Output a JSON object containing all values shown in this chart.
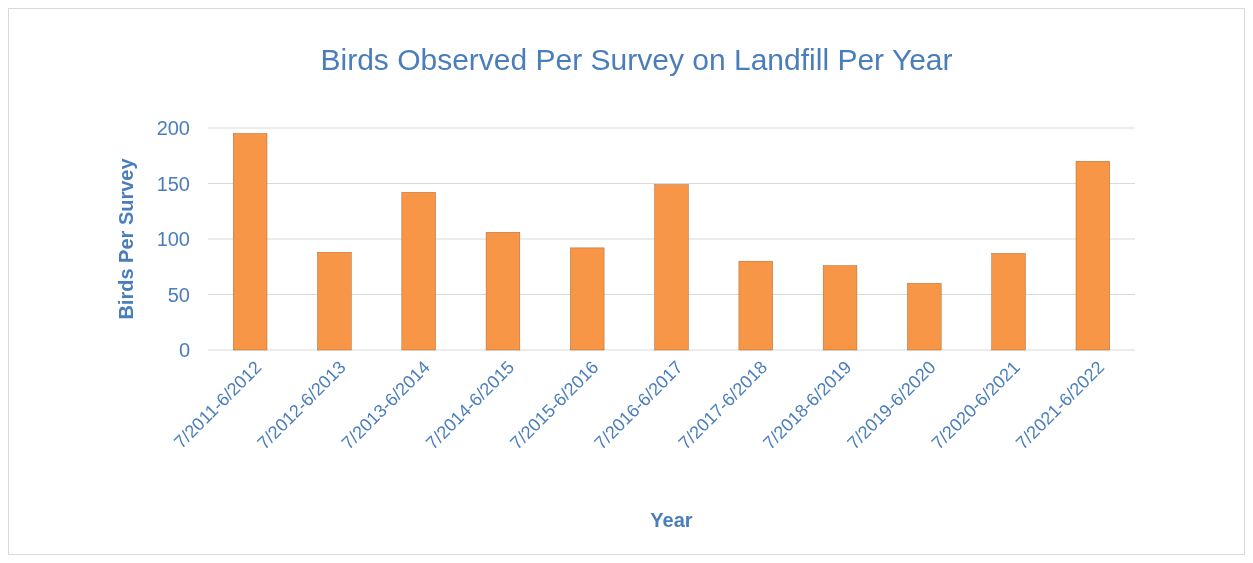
{
  "chart_data": {
    "type": "bar",
    "title": "Birds Observed Per Survey on Landfill Per Year",
    "xlabel": "Year",
    "ylabel": "Birds Per Survey",
    "categories": [
      "7/2011-6/2012",
      "7/2012-6/2013",
      "7/2013-6/2014",
      "7/2014-6/2015",
      "7/2015-6/2016",
      "7/2016-6/2017",
      "7/2017-6/2018",
      "7/2018-6/2019",
      "7/2019-6/2020",
      "7/2020-6/2021",
      "7/2021-6/2022"
    ],
    "values": [
      195,
      88,
      142,
      106,
      92,
      149,
      80,
      76,
      60,
      87,
      170
    ],
    "color": "#f79646",
    "ylim": [
      0,
      200
    ],
    "yticks": [
      0,
      50,
      100,
      150,
      200
    ],
    "grid": true
  }
}
